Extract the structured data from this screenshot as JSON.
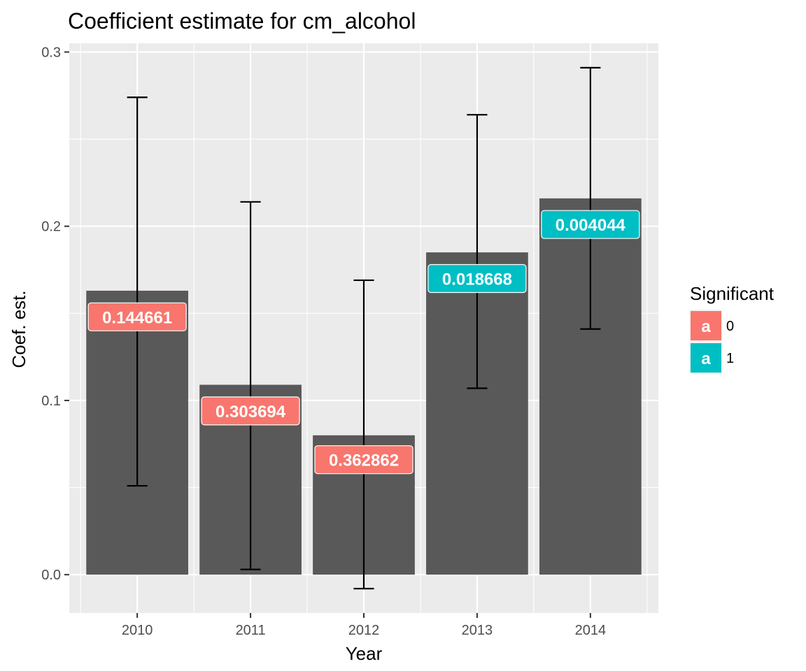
{
  "chart_data": {
    "type": "bar",
    "title": "Coefficient estimate for cm_alcohol",
    "xlabel": "Year",
    "ylabel": "Coef. est.",
    "categories": [
      "2010",
      "2011",
      "2012",
      "2013",
      "2014"
    ],
    "values": [
      0.163,
      0.109,
      0.08,
      0.185,
      0.216
    ],
    "error_low": [
      0.051,
      0.003,
      -0.008,
      0.107,
      0.141
    ],
    "error_high": [
      0.274,
      0.214,
      0.169,
      0.264,
      0.291
    ],
    "labels": [
      "0.144661",
      "0.303694",
      "0.362862",
      "0.018668",
      "0.004044"
    ],
    "label_y": [
      0.148,
      0.094,
      0.066,
      0.17,
      0.201
    ],
    "significant": [
      "0",
      "0",
      "0",
      "1",
      "1"
    ],
    "ylim": [
      -0.022,
      0.305
    ],
    "yticks": [
      0.0,
      0.1,
      0.2,
      0.3
    ],
    "ytick_labels": [
      "0.0",
      "0.1",
      "0.2",
      "0.3"
    ],
    "grid": true,
    "legend": {
      "title": "Significant",
      "position": "right",
      "key_letter": "a",
      "entries": [
        {
          "label": "0",
          "color": "#F8766D"
        },
        {
          "label": "1",
          "color": "#00BFC4"
        }
      ]
    },
    "colors": {
      "bar": "#595959",
      "panel": "#EBEBEB",
      "grid": "#FFFFFF",
      "sig0": "#F8766D",
      "sig1": "#00BFC4",
      "errorbar": "#000000"
    }
  }
}
